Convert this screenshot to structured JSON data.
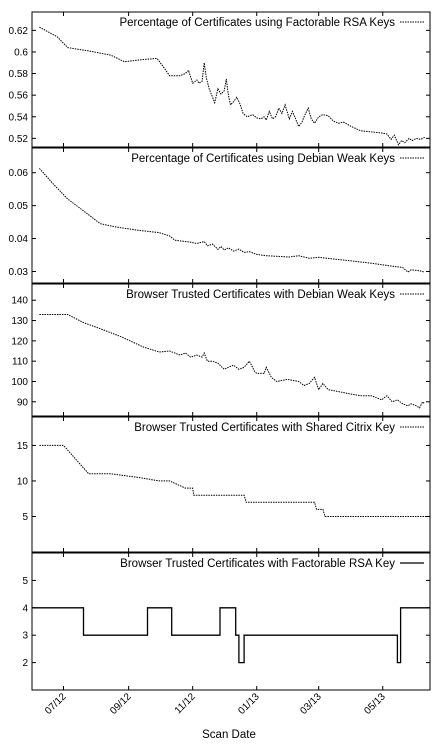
{
  "chart_data": {
    "type": "line",
    "layout": "stacked-panels-shared-x",
    "xlabel": "Scan Date",
    "x_ticks": [
      "07/12",
      "09/12",
      "11/12",
      "01/13",
      "03/13",
      "05/13"
    ],
    "x_range": [
      "2012-06-01",
      "2013-06-15"
    ],
    "grid": false,
    "legend_position": "top-right",
    "panels": [
      {
        "series_name": "Percentage of Certificates using Factorable RSA Keys",
        "line_style": "dotted",
        "ylim": [
          0.512,
          0.637
        ],
        "y_ticks": [
          0.52,
          0.54,
          0.56,
          0.58,
          0.6,
          0.62
        ],
        "points": [
          [
            "2012-06-08",
            0.623
          ],
          [
            "2012-06-25",
            0.614
          ],
          [
            "2012-07-05",
            0.604
          ],
          [
            "2012-07-25",
            0.601
          ],
          [
            "2012-08-15",
            0.597
          ],
          [
            "2012-08-28",
            0.591
          ],
          [
            "2012-09-15",
            0.593
          ],
          [
            "2012-09-28",
            0.594
          ],
          [
            "2012-10-05",
            0.585
          ],
          [
            "2012-10-10",
            0.578
          ],
          [
            "2012-10-20",
            0.578
          ],
          [
            "2012-10-25",
            0.58
          ],
          [
            "2012-10-28",
            0.583
          ],
          [
            "2012-11-01",
            0.571
          ],
          [
            "2012-11-05",
            0.574
          ],
          [
            "2012-11-07",
            0.571
          ],
          [
            "2012-11-10",
            0.573
          ],
          [
            "2012-11-12",
            0.59
          ],
          [
            "2012-11-14",
            0.576
          ],
          [
            "2012-11-17",
            0.565
          ],
          [
            "2012-11-20",
            0.558
          ],
          [
            "2012-11-22",
            0.553
          ],
          [
            "2012-11-25",
            0.566
          ],
          [
            "2012-11-28",
            0.561
          ],
          [
            "2012-12-01",
            0.564
          ],
          [
            "2012-12-03",
            0.575
          ],
          [
            "2012-12-05",
            0.56
          ],
          [
            "2012-12-07",
            0.551
          ],
          [
            "2012-12-10",
            0.554
          ],
          [
            "2012-12-13",
            0.558
          ],
          [
            "2012-12-16",
            0.552
          ],
          [
            "2012-12-19",
            0.543
          ],
          [
            "2012-12-23",
            0.54
          ],
          [
            "2012-12-28",
            0.542
          ],
          [
            "2013-01-01",
            0.539
          ],
          [
            "2013-01-05",
            0.538
          ],
          [
            "2013-01-08",
            0.54
          ],
          [
            "2013-01-10",
            0.537
          ],
          [
            "2013-01-13",
            0.545
          ],
          [
            "2013-01-16",
            0.538
          ],
          [
            "2013-01-19",
            0.54
          ],
          [
            "2013-01-22",
            0.548
          ],
          [
            "2013-01-25",
            0.543
          ],
          [
            "2013-01-28",
            0.551
          ],
          [
            "2013-02-01",
            0.538
          ],
          [
            "2013-02-04",
            0.545
          ],
          [
            "2013-02-07",
            0.538
          ],
          [
            "2013-02-10",
            0.531
          ],
          [
            "2013-02-13",
            0.535
          ],
          [
            "2013-02-16",
            0.542
          ],
          [
            "2013-02-19",
            0.548
          ],
          [
            "2013-02-22",
            0.538
          ],
          [
            "2013-02-25",
            0.534
          ],
          [
            "2013-03-01",
            0.54
          ],
          [
            "2013-03-05",
            0.542
          ],
          [
            "2013-03-10",
            0.541
          ],
          [
            "2013-03-15",
            0.536
          ],
          [
            "2013-03-20",
            0.534
          ],
          [
            "2013-03-25",
            0.535
          ],
          [
            "2013-04-01",
            0.531
          ],
          [
            "2013-04-10",
            0.527
          ],
          [
            "2013-04-20",
            0.526
          ],
          [
            "2013-04-30",
            0.525
          ],
          [
            "2013-05-05",
            0.524
          ],
          [
            "2013-05-09",
            0.519
          ],
          [
            "2013-05-12",
            0.523
          ],
          [
            "2013-05-16",
            0.514
          ],
          [
            "2013-05-19",
            0.518
          ],
          [
            "2013-05-22",
            0.516
          ],
          [
            "2013-05-26",
            0.52
          ],
          [
            "2013-05-29",
            0.518
          ],
          [
            "2013-06-02",
            0.52
          ],
          [
            "2013-06-06",
            0.519
          ],
          [
            "2013-06-10",
            0.521
          ]
        ]
      },
      {
        "series_name": "Percentage of Certificates using Debian Weak Keys",
        "line_style": "dotted",
        "ylim": [
          0.0265,
          0.0675
        ],
        "y_ticks": [
          0.03,
          0.04,
          0.05,
          0.06
        ],
        "points": [
          [
            "2012-06-08",
            0.0613
          ],
          [
            "2012-06-20",
            0.057
          ],
          [
            "2012-07-05",
            0.052
          ],
          [
            "2012-07-25",
            0.0472
          ],
          [
            "2012-08-05",
            0.0445
          ],
          [
            "2012-08-20",
            0.0435
          ],
          [
            "2012-09-10",
            0.0425
          ],
          [
            "2012-09-30",
            0.0418
          ],
          [
            "2012-10-10",
            0.0408
          ],
          [
            "2012-10-15",
            0.0395
          ],
          [
            "2012-10-30",
            0.0389
          ],
          [
            "2012-11-05",
            0.0385
          ],
          [
            "2012-11-12",
            0.0391
          ],
          [
            "2012-11-15",
            0.0378
          ],
          [
            "2012-11-20",
            0.0383
          ],
          [
            "2012-11-25",
            0.0367
          ],
          [
            "2012-11-28",
            0.0376
          ],
          [
            "2012-12-01",
            0.0365
          ],
          [
            "2012-12-05",
            0.0372
          ],
          [
            "2012-12-10",
            0.0362
          ],
          [
            "2012-12-15",
            0.0368
          ],
          [
            "2012-12-20",
            0.0358
          ],
          [
            "2012-12-25",
            0.036
          ],
          [
            "2013-01-01",
            0.0352
          ],
          [
            "2013-01-10",
            0.0348
          ],
          [
            "2013-01-20",
            0.0346
          ],
          [
            "2013-02-01",
            0.0344
          ],
          [
            "2013-02-10",
            0.0348
          ],
          [
            "2013-02-20",
            0.034
          ],
          [
            "2013-03-01",
            0.0343
          ],
          [
            "2013-03-15",
            0.0338
          ],
          [
            "2013-04-01",
            0.0332
          ],
          [
            "2013-04-20",
            0.0325
          ],
          [
            "2013-05-10",
            0.0316
          ],
          [
            "2013-05-20",
            0.0312
          ],
          [
            "2013-05-25",
            0.0298
          ],
          [
            "2013-05-28",
            0.0305
          ],
          [
            "2013-06-05",
            0.0302
          ],
          [
            "2013-06-10",
            0.0298
          ]
        ]
      },
      {
        "series_name": "Browser Trusted Certificates with Debian Weak Keys",
        "line_style": "dotted",
        "ylim": [
          83,
          148
        ],
        "y_ticks": [
          90,
          100,
          110,
          120,
          130,
          140
        ],
        "points": [
          [
            "2012-06-08",
            133
          ],
          [
            "2012-06-20",
            133
          ],
          [
            "2012-07-05",
            133
          ],
          [
            "2012-07-20",
            129
          ],
          [
            "2012-08-05",
            126
          ],
          [
            "2012-08-25",
            122
          ],
          [
            "2012-09-15",
            117
          ],
          [
            "2012-09-30",
            114.5
          ],
          [
            "2012-10-10",
            115
          ],
          [
            "2012-10-20",
            113
          ],
          [
            "2012-10-25",
            114
          ],
          [
            "2012-10-30",
            112
          ],
          [
            "2012-11-05",
            113
          ],
          [
            "2012-11-10",
            112
          ],
          [
            "2012-11-12",
            114
          ],
          [
            "2012-11-15",
            110
          ],
          [
            "2012-11-20",
            110
          ],
          [
            "2012-11-25",
            109
          ],
          [
            "2012-12-01",
            106
          ],
          [
            "2012-12-05",
            107
          ],
          [
            "2012-12-10",
            108
          ],
          [
            "2012-12-15",
            106
          ],
          [
            "2012-12-20",
            107
          ],
          [
            "2012-12-25",
            110
          ],
          [
            "2012-12-30",
            105
          ],
          [
            "2013-01-01",
            104
          ],
          [
            "2013-01-08",
            104
          ],
          [
            "2013-01-10",
            107
          ],
          [
            "2013-01-15",
            102
          ],
          [
            "2013-01-20",
            100
          ],
          [
            "2013-01-30",
            101
          ],
          [
            "2013-02-10",
            100
          ],
          [
            "2013-02-15",
            98
          ],
          [
            "2013-02-20",
            99
          ],
          [
            "2013-02-25",
            102
          ],
          [
            "2013-03-01",
            96
          ],
          [
            "2013-03-05",
            99
          ],
          [
            "2013-03-10",
            96
          ],
          [
            "2013-03-20",
            95
          ],
          [
            "2013-03-30",
            94
          ],
          [
            "2013-04-10",
            93
          ],
          [
            "2013-04-20",
            93
          ],
          [
            "2013-04-30",
            91
          ],
          [
            "2013-05-05",
            93
          ],
          [
            "2013-05-10",
            90
          ],
          [
            "2013-05-15",
            91
          ],
          [
            "2013-05-20",
            89
          ],
          [
            "2013-05-25",
            88
          ],
          [
            "2013-05-28",
            89
          ],
          [
            "2013-06-02",
            88
          ],
          [
            "2013-06-05",
            87
          ],
          [
            "2013-06-08",
            90
          ],
          [
            "2013-06-10",
            89
          ]
        ]
      },
      {
        "series_name": "Browser Trusted Certificates with Shared Citrix Key",
        "line_style": "dotted",
        "ylim": [
          0,
          19
        ],
        "y_ticks": [
          5,
          10,
          15
        ],
        "points": [
          [
            "2012-06-08",
            15
          ],
          [
            "2012-07-01",
            15
          ],
          [
            "2012-07-25",
            11
          ],
          [
            "2012-08-15",
            11
          ],
          [
            "2012-09-10",
            10.5
          ],
          [
            "2012-09-30",
            10
          ],
          [
            "2012-10-10",
            10
          ],
          [
            "2012-10-25",
            9
          ],
          [
            "2012-11-01",
            9
          ],
          [
            "2012-11-02",
            8
          ],
          [
            "2012-11-25",
            8
          ],
          [
            "2012-12-20",
            8
          ],
          [
            "2012-12-22",
            7
          ],
          [
            "2013-01-20",
            7
          ],
          [
            "2013-02-25",
            7
          ],
          [
            "2013-02-27",
            6
          ],
          [
            "2013-03-05",
            6
          ],
          [
            "2013-03-07",
            5
          ],
          [
            "2013-03-30",
            5
          ],
          [
            "2013-04-30",
            5
          ],
          [
            "2013-06-15",
            5
          ]
        ]
      },
      {
        "series_name": "Browser Trusted Certificates with Factorable RSA Key",
        "line_style": "solid-step",
        "ylim": [
          1,
          6
        ],
        "y_ticks": [
          2,
          3,
          4,
          5
        ],
        "points": [
          [
            "2012-06-01",
            4
          ],
          [
            "2012-07-20",
            4
          ],
          [
            "2012-07-20",
            3
          ],
          [
            "2012-09-19",
            3
          ],
          [
            "2012-09-19",
            4
          ],
          [
            "2012-10-12",
            4
          ],
          [
            "2012-10-12",
            3
          ],
          [
            "2012-11-27",
            3
          ],
          [
            "2012-11-27",
            4
          ],
          [
            "2012-12-12",
            4
          ],
          [
            "2012-12-12",
            3
          ],
          [
            "2012-12-15",
            3
          ],
          [
            "2012-12-15",
            2
          ],
          [
            "2012-12-20",
            2
          ],
          [
            "2012-12-20",
            3
          ],
          [
            "2013-05-15",
            3
          ],
          [
            "2013-05-15",
            2
          ],
          [
            "2013-05-18",
            2
          ],
          [
            "2013-05-18",
            4
          ],
          [
            "2013-06-15",
            4
          ]
        ]
      }
    ]
  }
}
